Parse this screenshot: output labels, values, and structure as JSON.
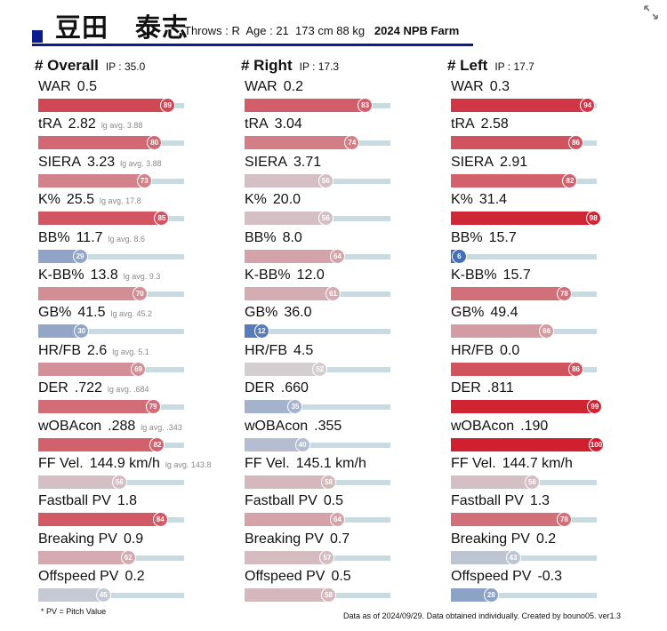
{
  "player": {
    "name": "豆田　泰志",
    "throws_label": "Throws : R",
    "age_label": "Age : 21",
    "body_label": "173 cm 88 kg",
    "league_label": "2024 NPB Farm"
  },
  "icons": {
    "expand": "expand-icon"
  },
  "colors": {
    "header_accent": "#0b1c8c",
    "track": "#c7dbe0",
    "high": "#d02030",
    "low": "#3060b0",
    "mid": "#d5d5d8"
  },
  "chart_data": {
    "type": "table",
    "scale": [
      0,
      100
    ],
    "columns": [
      {
        "title": "# Overall",
        "ip": "IP : 35.0",
        "metrics": [
          {
            "label": "WAR",
            "value": "0.5",
            "lg": "",
            "pct": 89
          },
          {
            "label": "tRA",
            "value": "2.82",
            "lg": "lg avg. 3.88",
            "pct": 80
          },
          {
            "label": "SIERA",
            "value": "3.23",
            "lg": "lg avg. 3.88",
            "pct": 73
          },
          {
            "label": "K%",
            "value": "25.5",
            "lg": "lg avg. 17.8",
            "pct": 85
          },
          {
            "label": "BB%",
            "value": "11.7",
            "lg": "lg avg. 8.6",
            "pct": 29
          },
          {
            "label": "K-BB%",
            "value": "13.8",
            "lg": "lg avg. 9.3",
            "pct": 70
          },
          {
            "label": "GB%",
            "value": "41.5",
            "lg": "lg avg. 45.2",
            "pct": 30
          },
          {
            "label": "HR/FB",
            "value": "2.6",
            "lg": "lg avg. 5.1",
            "pct": 69
          },
          {
            "label": "DER",
            "value": ".722",
            "lg": "lg avg. .684",
            "pct": 79
          },
          {
            "label": "wOBAcon",
            "value": ".288",
            "lg": "lg avg. .343",
            "pct": 82
          },
          {
            "label": "FF Vel.",
            "value": "144.9 km/h",
            "lg": "lg avg. 143.8",
            "pct": 56
          },
          {
            "label": "Fastball PV",
            "value": "1.8",
            "lg": "",
            "pct": 84
          },
          {
            "label": "Breaking PV",
            "value": "0.9",
            "lg": "",
            "pct": 62
          },
          {
            "label": "Offspeed PV",
            "value": "0.2",
            "lg": "",
            "pct": 45
          }
        ]
      },
      {
        "title": "# Right",
        "ip": "IP : 17.3",
        "metrics": [
          {
            "label": "WAR",
            "value": "0.2",
            "lg": "",
            "pct": 83
          },
          {
            "label": "tRA",
            "value": "3.04",
            "lg": "",
            "pct": 74
          },
          {
            "label": "SIERA",
            "value": "3.71",
            "lg": "",
            "pct": 56
          },
          {
            "label": "K%",
            "value": "20.0",
            "lg": "",
            "pct": 56
          },
          {
            "label": "BB%",
            "value": "8.0",
            "lg": "",
            "pct": 64
          },
          {
            "label": "K-BB%",
            "value": "12.0",
            "lg": "",
            "pct": 61
          },
          {
            "label": "GB%",
            "value": "36.0",
            "lg": "",
            "pct": 12
          },
          {
            "label": "HR/FB",
            "value": "4.5",
            "lg": "",
            "pct": 52
          },
          {
            "label": "DER",
            "value": ".660",
            "lg": "",
            "pct": 35
          },
          {
            "label": "wOBAcon",
            "value": ".355",
            "lg": "",
            "pct": 40
          },
          {
            "label": "FF Vel.",
            "value": "145.1 km/h",
            "lg": "",
            "pct": 58
          },
          {
            "label": "Fastball PV",
            "value": "0.5",
            "lg": "",
            "pct": 64
          },
          {
            "label": "Breaking PV",
            "value": "0.7",
            "lg": "",
            "pct": 57
          },
          {
            "label": "Offspeed PV",
            "value": "0.5",
            "lg": "",
            "pct": 58
          }
        ]
      },
      {
        "title": "# Left",
        "ip": "IP : 17.7",
        "metrics": [
          {
            "label": "WAR",
            "value": "0.3",
            "lg": "",
            "pct": 94
          },
          {
            "label": "tRA",
            "value": "2.58",
            "lg": "",
            "pct": 86
          },
          {
            "label": "SIERA",
            "value": "2.91",
            "lg": "",
            "pct": 82
          },
          {
            "label": "K%",
            "value": "31.4",
            "lg": "",
            "pct": 98
          },
          {
            "label": "BB%",
            "value": "15.7",
            "lg": "",
            "pct": 6
          },
          {
            "label": "K-BB%",
            "value": "15.7",
            "lg": "",
            "pct": 78
          },
          {
            "label": "GB%",
            "value": "49.4",
            "lg": "",
            "pct": 66
          },
          {
            "label": "HR/FB",
            "value": "0.0",
            "lg": "",
            "pct": 86
          },
          {
            "label": "DER",
            "value": ".811",
            "lg": "",
            "pct": 99
          },
          {
            "label": "wOBAcon",
            "value": ".190",
            "lg": "",
            "pct": 100
          },
          {
            "label": "FF Vel.",
            "value": "144.7 km/h",
            "lg": "",
            "pct": 56
          },
          {
            "label": "Fastball PV",
            "value": "1.3",
            "lg": "",
            "pct": 78
          },
          {
            "label": "Breaking PV",
            "value": "0.2",
            "lg": "",
            "pct": 43
          },
          {
            "label": "Offspeed PV",
            "value": "-0.3",
            "lg": "",
            "pct": 28
          }
        ]
      }
    ]
  },
  "footer": {
    "note": "* PV = Pitch Value",
    "source": "Data as of 2024/09/29. Data obtained individually. Created by bouno05.  ver1.3"
  }
}
